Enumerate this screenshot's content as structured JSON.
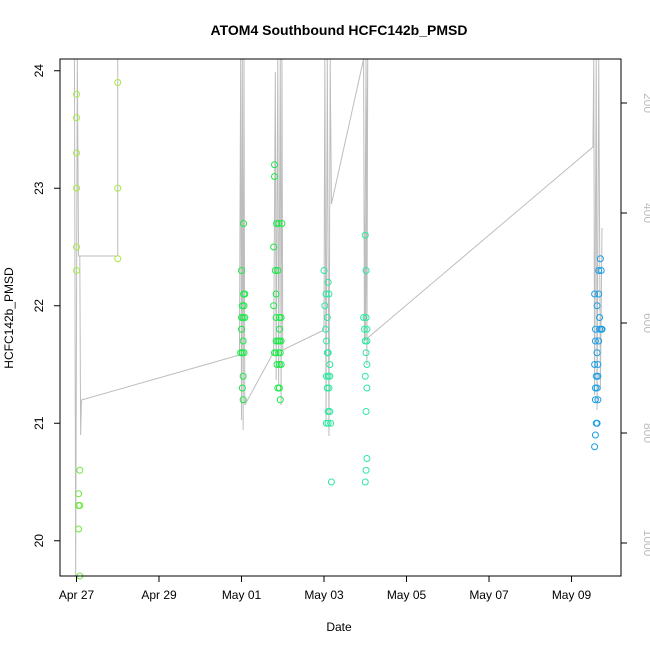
{
  "chart_data": {
    "type": "scatter",
    "title": "ATOM4 Southbound HCFC142b_PMSD",
    "xlabel": "Date",
    "ylabel": "HCFC142b_PMSD",
    "x_ticks": [
      "Apr 27",
      "Apr 29",
      "May 01",
      "May 03",
      "May 05",
      "May 07",
      "May 09"
    ],
    "x_tick_days": [
      0,
      2,
      4,
      6,
      8,
      10,
      12
    ],
    "xlim_days": [
      -0.4,
      13.2
    ],
    "ylim": [
      19.7,
      24.1
    ],
    "y_ticks": [
      20,
      21,
      22,
      23,
      24
    ],
    "right_axis": {
      "label": "",
      "ticks": [
        200,
        400,
        600,
        800,
        1000
      ],
      "range": [
        1060,
        120
      ],
      "color": "#bdbdbd"
    },
    "grid": false,
    "legend": "none",
    "marker_colors": [
      "#a8e84a",
      "#6fe840",
      "#1ee84a",
      "#2ee8a0",
      "#24c8e0",
      "#1a9ee6"
    ],
    "line_color": "#bdbdbd",
    "series": [
      {
        "color": "#a8e84a",
        "points": [
          [
            0.0,
            23.8
          ],
          [
            0.0,
            23.6
          ],
          [
            0.0,
            23.3
          ],
          [
            0.0,
            23.0
          ],
          [
            0.0,
            22.5
          ],
          [
            0.0,
            22.3
          ],
          [
            1.0,
            23.9
          ],
          [
            1.0,
            23.0
          ],
          [
            1.0,
            22.4
          ]
        ]
      },
      {
        "color": "#6fe840",
        "points": [
          [
            0.08,
            20.6
          ],
          [
            0.05,
            20.4
          ],
          [
            0.05,
            20.3
          ],
          [
            0.08,
            20.3
          ],
          [
            0.05,
            20.1
          ],
          [
            0.08,
            19.7
          ]
        ]
      },
      {
        "color": "#1ee84a",
        "points": [
          [
            4.0,
            22.3
          ],
          [
            4.05,
            22.7
          ],
          [
            4.05,
            22.1
          ],
          [
            4.08,
            22.1
          ],
          [
            4.02,
            22.0
          ],
          [
            4.06,
            22.0
          ],
          [
            4.0,
            21.9
          ],
          [
            4.04,
            21.9
          ],
          [
            4.08,
            21.9
          ],
          [
            4.0,
            21.8
          ],
          [
            4.04,
            21.7
          ],
          [
            3.98,
            21.6
          ],
          [
            4.02,
            21.6
          ],
          [
            4.06,
            21.6
          ],
          [
            4.04,
            21.4
          ],
          [
            4.02,
            21.3
          ],
          [
            4.04,
            21.2
          ],
          [
            4.8,
            23.2
          ],
          [
            4.8,
            23.1
          ],
          [
            4.85,
            22.7
          ],
          [
            4.9,
            22.7
          ],
          [
            4.98,
            22.7
          ],
          [
            4.78,
            22.5
          ],
          [
            4.82,
            22.3
          ],
          [
            4.88,
            22.3
          ],
          [
            4.84,
            22.1
          ],
          [
            4.78,
            22.0
          ],
          [
            4.84,
            21.9
          ],
          [
            4.92,
            21.9
          ],
          [
            4.96,
            21.9
          ],
          [
            4.92,
            21.8
          ],
          [
            4.84,
            21.7
          ],
          [
            4.88,
            21.7
          ],
          [
            4.92,
            21.7
          ],
          [
            4.96,
            21.7
          ],
          [
            4.8,
            21.6
          ],
          [
            4.84,
            21.6
          ],
          [
            4.9,
            21.6
          ],
          [
            4.94,
            21.6
          ],
          [
            4.86,
            21.5
          ],
          [
            4.92,
            21.5
          ],
          [
            4.96,
            21.5
          ],
          [
            4.88,
            21.3
          ],
          [
            4.92,
            21.3
          ],
          [
            4.94,
            21.2
          ]
        ]
      },
      {
        "color": "#2ee8a0",
        "points": [
          [
            6.0,
            22.3
          ],
          [
            6.05,
            22.1
          ],
          [
            6.02,
            22.0
          ],
          [
            6.1,
            22.2
          ],
          [
            6.12,
            22.1
          ],
          [
            6.08,
            21.9
          ],
          [
            6.04,
            21.8
          ],
          [
            6.06,
            21.7
          ],
          [
            6.08,
            21.6
          ],
          [
            6.1,
            21.6
          ],
          [
            6.14,
            21.5
          ],
          [
            6.06,
            21.4
          ],
          [
            6.1,
            21.4
          ],
          [
            6.14,
            21.4
          ],
          [
            6.08,
            21.3
          ],
          [
            6.12,
            21.3
          ],
          [
            6.1,
            21.1
          ],
          [
            6.14,
            21.1
          ],
          [
            6.06,
            21.0
          ],
          [
            6.1,
            21.0
          ],
          [
            6.16,
            21.0
          ],
          [
            6.18,
            20.5
          ],
          [
            7.0,
            22.6
          ],
          [
            7.02,
            22.3
          ],
          [
            6.96,
            21.9
          ],
          [
            7.02,
            21.9
          ],
          [
            6.98,
            21.8
          ],
          [
            7.04,
            21.8
          ],
          [
            7.0,
            21.7
          ],
          [
            7.04,
            21.7
          ],
          [
            7.02,
            21.6
          ],
          [
            7.04,
            21.5
          ],
          [
            7.0,
            21.4
          ],
          [
            7.04,
            21.3
          ],
          [
            7.02,
            21.1
          ],
          [
            7.04,
            20.7
          ],
          [
            7.02,
            20.6
          ],
          [
            7.0,
            20.5
          ]
        ]
      },
      {
        "color": "#1a9ee6",
        "points": [
          [
            12.7,
            22.4
          ],
          [
            12.72,
            22.3
          ],
          [
            12.66,
            22.3
          ],
          [
            12.56,
            22.1
          ],
          [
            12.66,
            22.1
          ],
          [
            12.62,
            22.0
          ],
          [
            12.68,
            21.9
          ],
          [
            12.58,
            21.8
          ],
          [
            12.68,
            21.8
          ],
          [
            12.72,
            21.8
          ],
          [
            12.74,
            21.8
          ],
          [
            12.58,
            21.7
          ],
          [
            12.66,
            21.7
          ],
          [
            12.62,
            21.6
          ],
          [
            12.64,
            21.5
          ],
          [
            12.56,
            21.5
          ],
          [
            12.6,
            21.4
          ],
          [
            12.64,
            21.4
          ],
          [
            12.58,
            21.3
          ],
          [
            12.62,
            21.3
          ],
          [
            12.58,
            21.2
          ],
          [
            12.64,
            21.2
          ],
          [
            12.6,
            21.0
          ],
          [
            12.62,
            21.0
          ],
          [
            12.58,
            20.9
          ],
          [
            12.56,
            20.8
          ]
        ]
      }
    ]
  }
}
